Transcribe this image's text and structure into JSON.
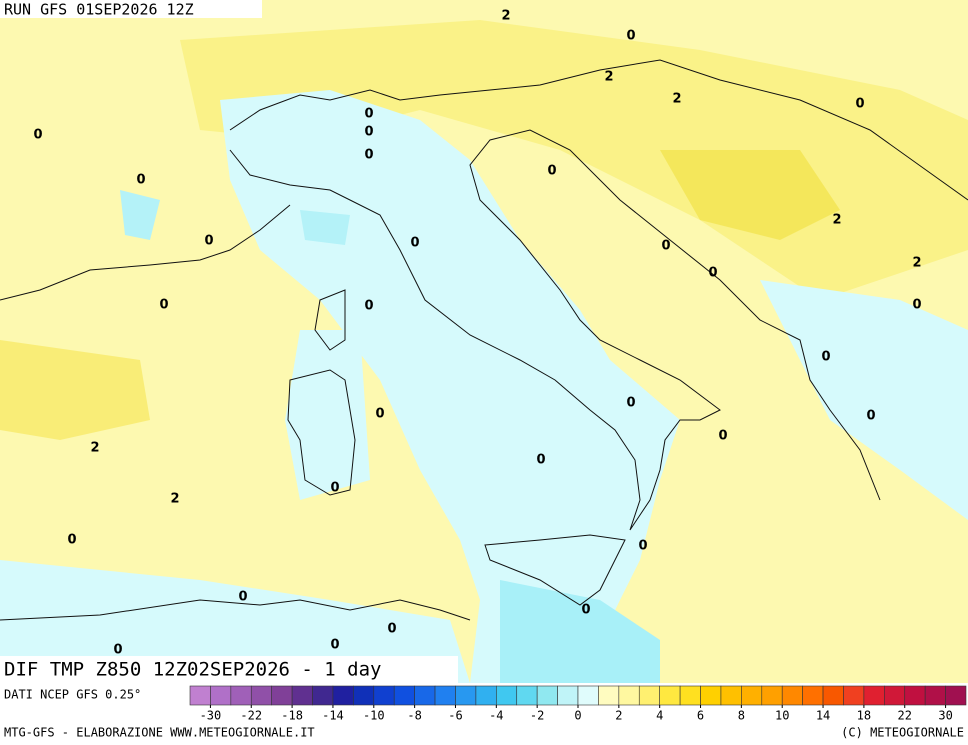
{
  "header": {
    "run": "RUN GFS 01SEP2026 12Z"
  },
  "map": {
    "contour_labels": [
      2,
      0,
      2,
      2,
      0,
      0,
      0,
      0,
      0,
      0,
      0,
      2,
      0,
      0,
      0,
      0,
      2,
      0,
      0,
      0,
      0,
      0,
      0,
      0,
      0,
      2,
      0,
      0,
      2,
      0,
      0,
      0,
      0,
      0,
      0,
      0
    ]
  },
  "title": "DIF TMP Z850 12Z02SEP2026 - 1 day",
  "source": "DATI NCEP GFS 0.25°",
  "colorbar": {
    "ticks": [
      -30,
      -22,
      -18,
      -14,
      -10,
      -8,
      -6,
      -4,
      -2,
      0,
      2,
      4,
      6,
      8,
      10,
      14,
      18,
      22,
      30
    ],
    "colors": [
      "#c080d0",
      "#b070c8",
      "#a060b8",
      "#9050a8",
      "#804098",
      "#603090",
      "#402890",
      "#2020a0",
      "#1030b8",
      "#1040d0",
      "#1050e0",
      "#1868e8",
      "#2080f0",
      "#2898f0",
      "#30b0f0",
      "#40c8f0",
      "#60d8f0",
      "#90e8f0",
      "#c0f4f8",
      "#e0fcfc",
      "#fffcc0",
      "#fff8a0",
      "#fff070",
      "#ffe840",
      "#ffe020",
      "#ffd000",
      "#ffc000",
      "#ffb000",
      "#ffa000",
      "#ff8800",
      "#ff7000",
      "#f85800",
      "#f04020",
      "#e02030",
      "#d01838",
      "#c01040",
      "#b01048",
      "#a01050"
    ]
  },
  "footer": {
    "left": "MTG-GFS - ELABORAZIONE WWW.METEOGIORNALE.IT",
    "right": "(C) METEOGIORNALE"
  }
}
